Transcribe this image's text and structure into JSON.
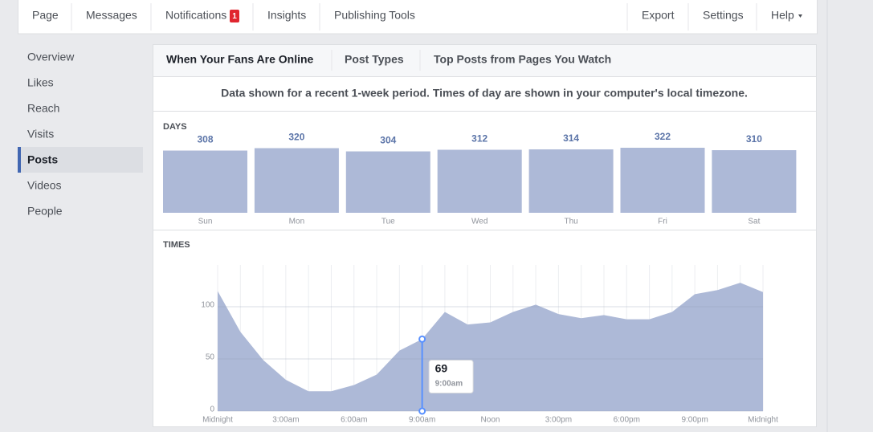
{
  "nav": {
    "left": [
      "Page",
      "Messages",
      "Notifications",
      "Insights",
      "Publishing Tools"
    ],
    "notification_count": 1,
    "right": [
      "Export",
      "Settings",
      "Help"
    ]
  },
  "sidebar": [
    "Overview",
    "Likes",
    "Reach",
    "Visits",
    "Posts",
    "Videos",
    "People"
  ],
  "tabs": [
    "When Your Fans Are Online",
    "Post Types",
    "Top Posts from Pages You Watch"
  ],
  "notice": "Data shown for a recent 1-week period. Times of day are shown in your computer's local timezone.",
  "days_chart": {
    "type": "bar",
    "title": "DAYS",
    "categories": [
      "Sun",
      "Mon",
      "Tue",
      "Wed",
      "Thu",
      "Fri",
      "Sat"
    ],
    "values": [
      308,
      320,
      304,
      312,
      314,
      322,
      310
    ],
    "color": "#adb9d7"
  },
  "times_chart": {
    "type": "area",
    "title": "TIMES",
    "x": [
      "Midnight",
      null,
      null,
      "3:00am",
      null,
      null,
      "6:00am",
      null,
      null,
      "9:00am",
      null,
      null,
      "Noon",
      null,
      null,
      "3:00pm",
      null,
      null,
      "6:00pm",
      null,
      null,
      "9:00pm",
      null,
      null,
      "Midnight"
    ],
    "values": [
      115,
      76,
      49,
      30,
      19,
      19,
      25,
      35,
      58,
      69,
      95,
      83,
      85,
      95,
      102,
      93,
      89,
      92,
      88,
      88,
      95,
      112,
      116,
      123,
      114
    ],
    "ylim": [
      0,
      140
    ],
    "yticks": [
      0,
      50,
      100
    ],
    "color": "#adb9d7",
    "grid": true
  }
}
